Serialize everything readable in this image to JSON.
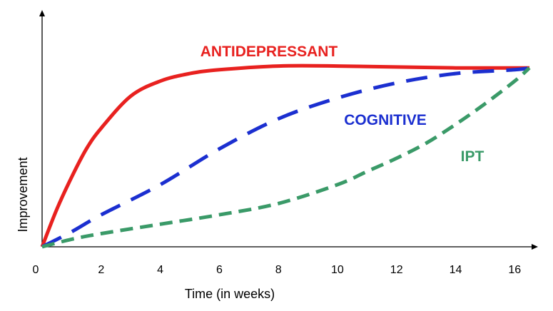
{
  "chart_data": {
    "type": "line",
    "title": "",
    "xlabel": "Time (in weeks)",
    "ylabel": "Improvement",
    "xlim": [
      0,
      16.5
    ],
    "ylim": [
      0,
      1
    ],
    "x_ticks": [
      0,
      2,
      4,
      6,
      8,
      10,
      12,
      14,
      16
    ],
    "y_ticks": [],
    "grid": false,
    "legend": "none",
    "series": [
      {
        "name": "ANTIDEPRESSANT",
        "color": "#e8211f",
        "style": "solid",
        "x": [
          0,
          0.5,
          1,
          1.5,
          2,
          3,
          4,
          5,
          6,
          8,
          10,
          12,
          14,
          16,
          16.5
        ],
        "y": [
          0,
          0.2,
          0.37,
          0.52,
          0.63,
          0.8,
          0.88,
          0.92,
          0.94,
          0.96,
          0.96,
          0.955,
          0.95,
          0.95,
          0.95
        ]
      },
      {
        "name": "COGNITIVE",
        "color": "#1b2fd0",
        "style": "dashed",
        "x": [
          0,
          1,
          2,
          4,
          6,
          8,
          10,
          12,
          14,
          16,
          16.5
        ],
        "y": [
          0,
          0.08,
          0.17,
          0.33,
          0.52,
          0.68,
          0.79,
          0.87,
          0.92,
          0.94,
          0.95
        ]
      },
      {
        "name": "IPT",
        "color": "#3a9a68",
        "style": "dashed",
        "x": [
          0,
          1,
          2,
          4,
          6,
          8,
          10,
          11,
          12,
          13,
          14,
          15,
          16,
          16.5
        ],
        "y": [
          0,
          0.04,
          0.07,
          0.12,
          0.17,
          0.23,
          0.33,
          0.4,
          0.47,
          0.55,
          0.65,
          0.76,
          0.88,
          0.95
        ]
      }
    ]
  }
}
